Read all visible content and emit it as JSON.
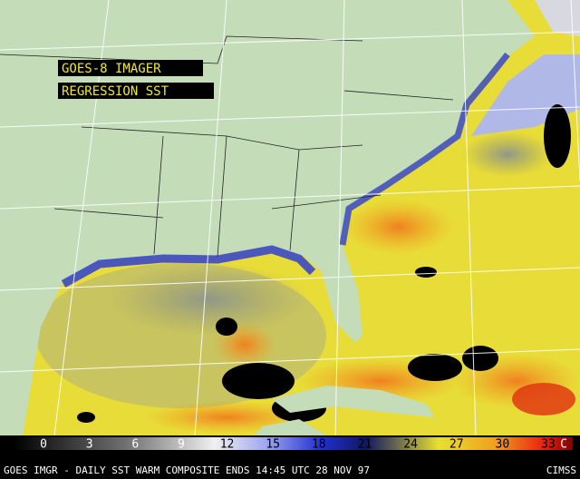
{
  "labels": {
    "sensor": "GOES-8 IMAGER",
    "product": "REGRESSION SST"
  },
  "colorbar": {
    "ticks": [
      0,
      3,
      6,
      9,
      12,
      15,
      18,
      21,
      24,
      27,
      30,
      33
    ],
    "unit": "C"
  },
  "footer": {
    "caption": "GOES IMGR - DAILY SST WARM COMPOSITE ENDS 14:45 UTC 28 NOV 97",
    "credit": "CIMSS"
  }
}
